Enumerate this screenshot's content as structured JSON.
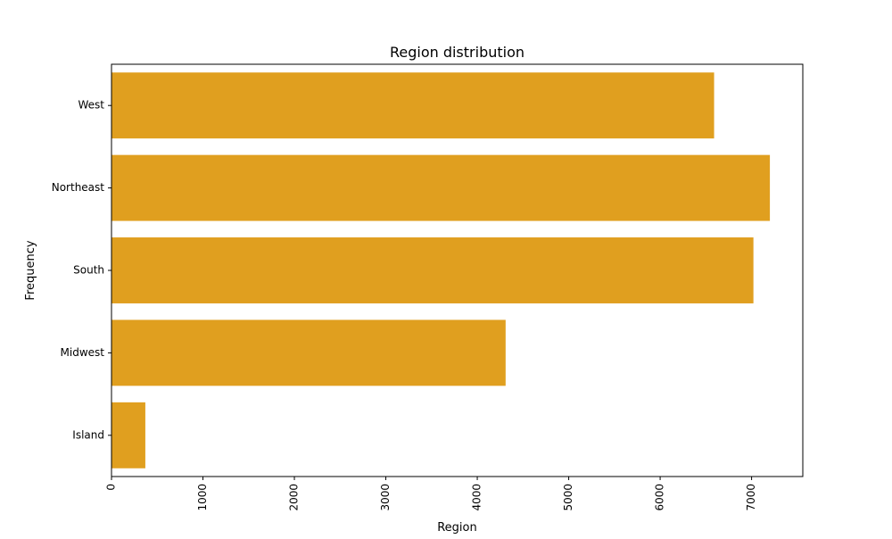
{
  "chart_data": {
    "type": "bar",
    "orientation": "horizontal",
    "title": "Region distribution",
    "xlabel": "Region",
    "ylabel": "Frequency",
    "categories": [
      "West",
      "Northeast",
      "South",
      "Midwest",
      "Island"
    ],
    "values": [
      6590,
      7200,
      7020,
      4310,
      370
    ],
    "xlim": [
      0,
      7560
    ],
    "xticks": [
      0,
      1000,
      2000,
      3000,
      4000,
      5000,
      6000,
      7000
    ],
    "xtick_rotation": "vertical",
    "grid": false,
    "legend": "none",
    "bar_color": "#e09f1f"
  }
}
